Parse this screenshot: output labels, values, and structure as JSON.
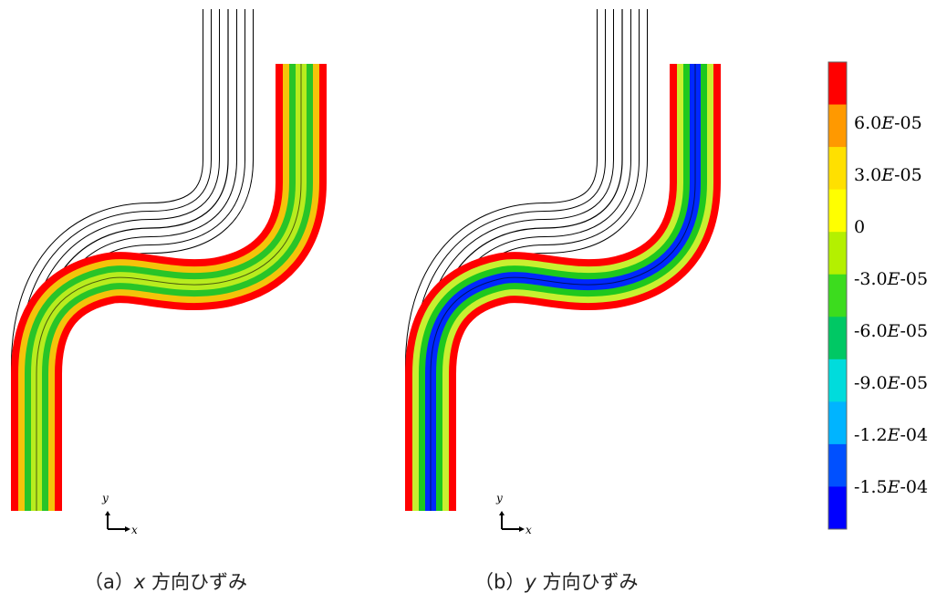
{
  "panels": [
    {
      "caption_prefix": "（a）",
      "caption_var": "x",
      "caption_suffix": " 方向ひずみ",
      "coord_labels": {
        "y": "y",
        "x": "x"
      },
      "bands_outer_to_inner": [
        "#ff0000",
        "#f4c40a",
        "#28c428",
        "#b8ec1e"
      ]
    },
    {
      "caption_prefix": "（b）",
      "caption_var": "y",
      "caption_suffix": " 方向ひずみ",
      "coord_labels": {
        "y": "y",
        "x": "x"
      },
      "bands_outer_to_inner": [
        "#ff0000",
        "#c8f030",
        "#1ec81e",
        "#0028ff"
      ]
    }
  ],
  "colorbar": {
    "colors_top_to_bottom": [
      "#ff0000",
      "#ff9900",
      "#ffe000",
      "#ffff00",
      "#b4f000",
      "#3cdc1e",
      "#00c864",
      "#00dcdc",
      "#00b4ff",
      "#0050ff",
      "#0000ff"
    ],
    "tick_labels": [
      {
        "mantissa": "6.0",
        "e": "E",
        "exp": "-05"
      },
      {
        "mantissa": "3.0",
        "e": "E",
        "exp": "-05"
      },
      {
        "mantissa": "0",
        "e": "",
        "exp": ""
      },
      {
        "mantissa": "-3.0",
        "e": "E",
        "exp": "-05"
      },
      {
        "mantissa": "-6.0",
        "e": "E",
        "exp": "-05"
      },
      {
        "mantissa": "-9.0",
        "e": "E",
        "exp": "-05"
      },
      {
        "mantissa": "-1.2",
        "e": "E",
        "exp": "-04"
      },
      {
        "mantissa": "-1.5",
        "e": "E",
        "exp": "-04"
      }
    ]
  }
}
